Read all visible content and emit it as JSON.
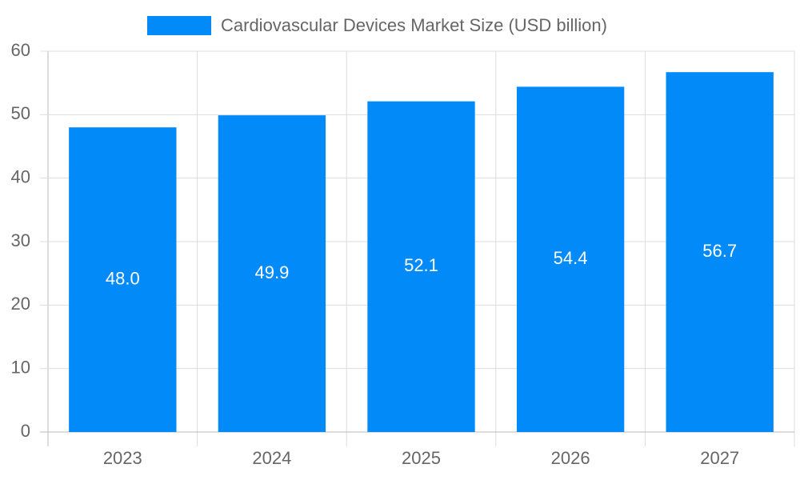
{
  "chart_data": {
    "type": "bar",
    "categories": [
      "2023",
      "2024",
      "2025",
      "2026",
      "2027"
    ],
    "series": [
      {
        "name": "Cardiovascular Devices Market Size (USD billion)",
        "color": "#038af9",
        "values": [
          48.0,
          49.9,
          52.1,
          54.4,
          56.7
        ],
        "value_labels": [
          "48.0",
          "49.9",
          "52.1",
          "54.4",
          "56.7"
        ]
      }
    ],
    "ylim": [
      0,
      60
    ],
    "yticks": [
      0,
      10,
      20,
      30,
      40,
      50,
      60
    ],
    "grid": true,
    "legend": "top"
  }
}
